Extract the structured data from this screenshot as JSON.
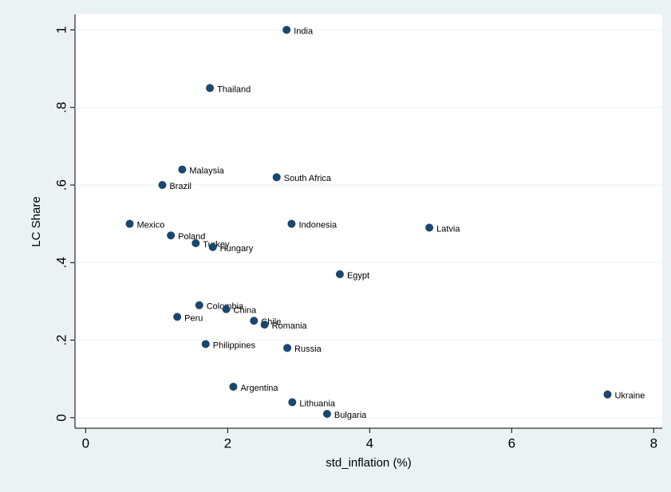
{
  "chart_data": {
    "type": "scatter",
    "xlabel": "std_inflation (%)",
    "ylabel": "LC Share",
    "labels": [
      "India",
      "Thailand",
      "Malaysia",
      "South Africa",
      "Brazil",
      "Mexico",
      "Indonesia",
      "Latvia",
      "Poland",
      "Turkey",
      "Hungary",
      "Egypt",
      "Colombia",
      "China",
      "Peru",
      "Chile",
      "Romania",
      "Philippines",
      "Russia",
      "Argentina",
      "Lithuania",
      "Bulgaria",
      "Ukraine"
    ],
    "x": [
      2.83,
      1.75,
      1.36,
      2.69,
      1.08,
      0.62,
      2.9,
      4.84,
      1.2,
      1.55,
      1.79,
      3.58,
      1.6,
      1.98,
      1.29,
      2.37,
      2.52,
      1.69,
      2.84,
      2.08,
      2.91,
      3.4,
      7.35
    ],
    "values": [
      1.0,
      0.85,
      0.64,
      0.62,
      0.6,
      0.5,
      0.5,
      0.49,
      0.47,
      0.45,
      0.44,
      0.37,
      0.29,
      0.28,
      0.26,
      0.25,
      0.24,
      0.19,
      0.18,
      0.08,
      0.04,
      0.01,
      0.06
    ],
    "color": "#1a476f",
    "xlim": [
      -0.15,
      8.12
    ],
    "ylim": [
      -0.027,
      1.04
    ],
    "xticks": [
      0,
      2,
      4,
      6,
      8
    ],
    "yticks": [
      0,
      {
        "value": 0.2,
        "label": ".2"
      },
      {
        "value": 0.4,
        "label": ".4"
      },
      {
        "value": 0.6,
        "label": ".6"
      },
      {
        "value": 0.8,
        "label": ".8"
      },
      1
    ],
    "grid": true
  }
}
